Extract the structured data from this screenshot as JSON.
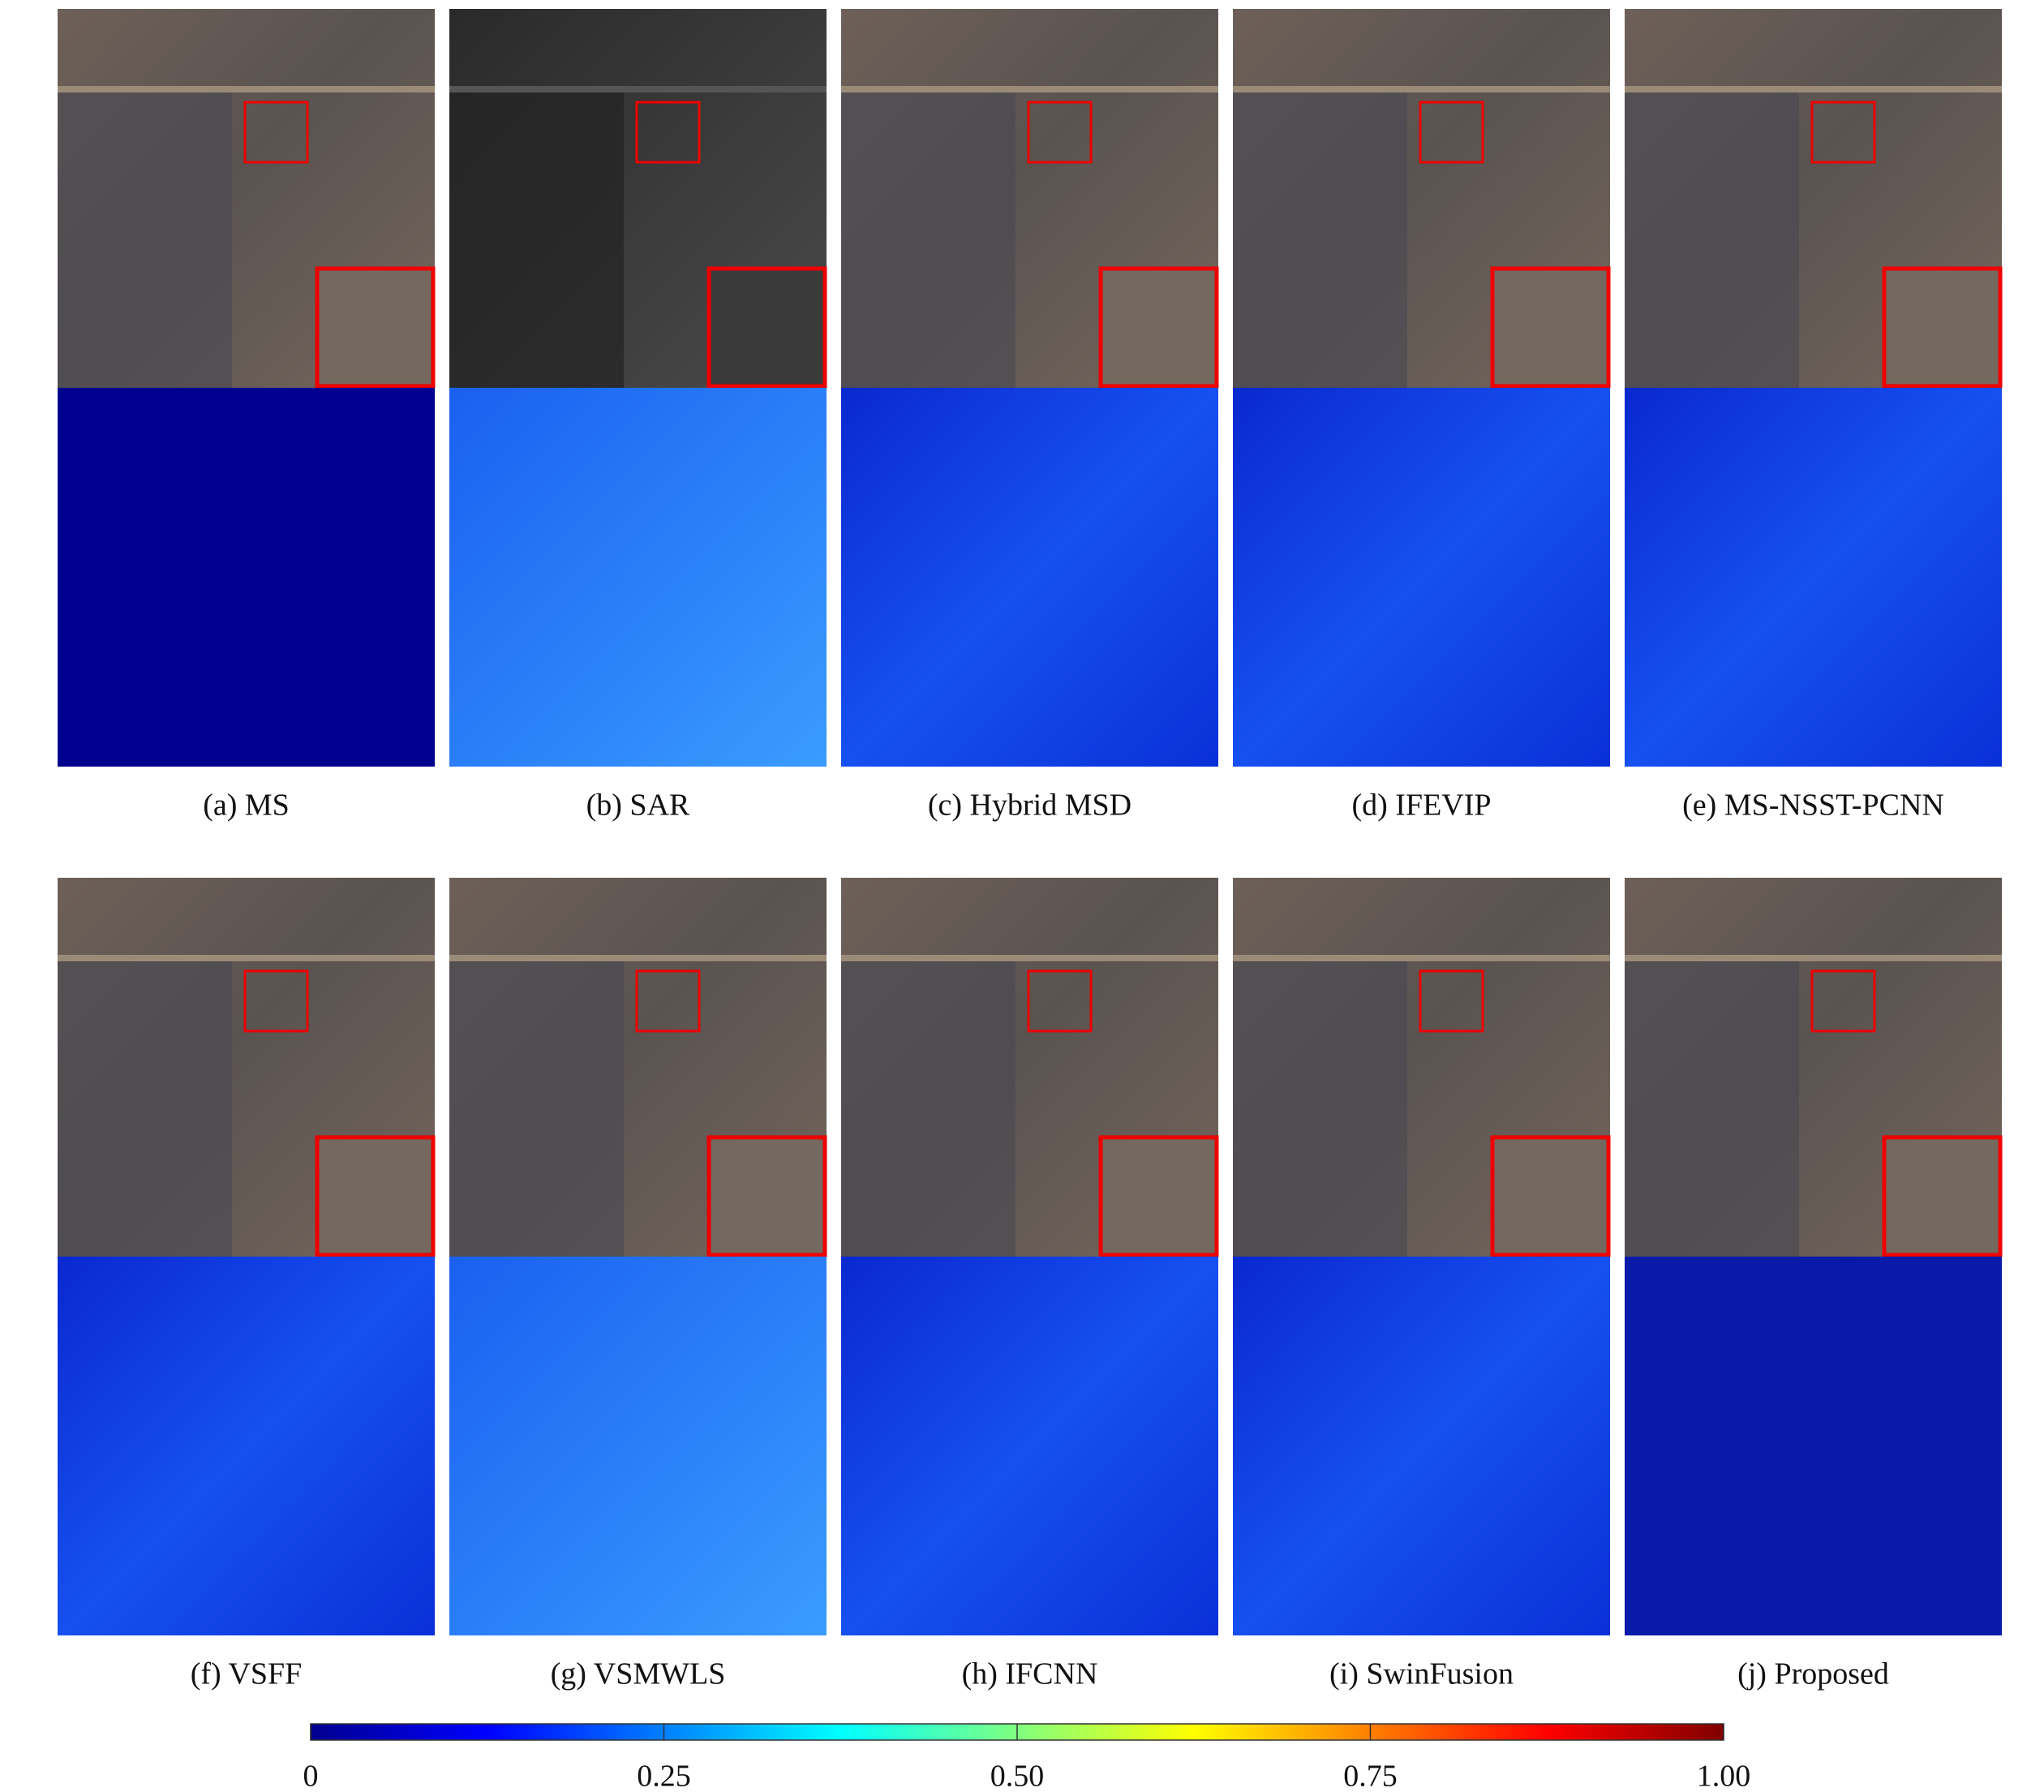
{
  "panels": [
    {
      "caption": "(a) MS"
    },
    {
      "caption": "(b) SAR"
    },
    {
      "caption": "(c) Hybrid MSD"
    },
    {
      "caption": "(d) IFEVIP"
    },
    {
      "caption": "(e) MS-NSST-PCNN"
    },
    {
      "caption": "(f) VSFF"
    },
    {
      "caption": "(g) VSMWLS"
    },
    {
      "caption": "(h) IFCNN"
    },
    {
      "caption": "(i) SwinFusion"
    },
    {
      "caption": "(j) Proposed"
    }
  ],
  "colorbar": {
    "lim": [
      0,
      1
    ],
    "ticks": [
      0,
      {
        "value": 0.25,
        "label": "0.25"
      },
      {
        "value": 0.5,
        "label": "0.50"
      },
      {
        "value": 0.75,
        "label": "0.75"
      },
      {
        "value": 1,
        "label": "1.00"
      }
    ]
  }
}
